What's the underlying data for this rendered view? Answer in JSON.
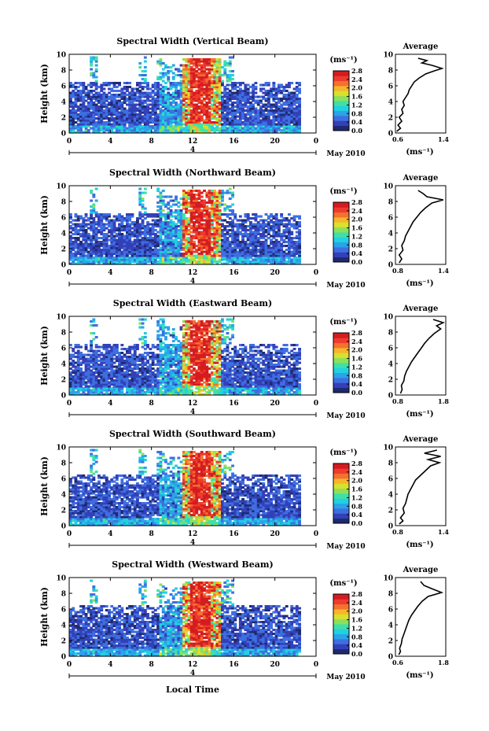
{
  "figure": {
    "x_axis_label": "Local Time",
    "date_label": "May 2010",
    "day_label": "4",
    "height_label": "Height (km)",
    "unit_label": "(ms⁻¹)",
    "avg_unit_label": "(ms⁻¹)",
    "avg_title": "Average"
  },
  "chart_data": [
    {
      "type": "heatmap",
      "title": "Spectral Width (Vertical Beam)",
      "xlabel": "Local Time",
      "ylabel": "Height (km)",
      "xlim": [
        0,
        24
      ],
      "ylim": [
        0,
        10
      ],
      "x_ticks": [
        "0",
        "4",
        "8",
        "12",
        "16",
        "20",
        "0"
      ],
      "y_ticks": [
        "0",
        "2",
        "4",
        "6",
        "8",
        "10"
      ],
      "colorbar": {
        "range": [
          0,
          2.8
        ],
        "ticks": [
          "0.0",
          "0.4",
          "0.8",
          "1.2",
          "1.6",
          "2.0",
          "2.4",
          "2.8"
        ],
        "unit": "(ms⁻¹)"
      },
      "average": {
        "xlim": [
          0.6,
          1.4
        ],
        "x_ticks": [
          "0.6",
          "1.4"
        ],
        "profile": [
          [
            0.62,
            0.2
          ],
          [
            0.68,
            0.6
          ],
          [
            0.64,
            1.0
          ],
          [
            0.7,
            1.5
          ],
          [
            0.66,
            2.0
          ],
          [
            0.72,
            2.5
          ],
          [
            0.7,
            3.0
          ],
          [
            0.74,
            3.5
          ],
          [
            0.72,
            4.0
          ],
          [
            0.76,
            4.5
          ],
          [
            0.8,
            5.0
          ],
          [
            0.82,
            5.5
          ],
          [
            0.86,
            6.0
          ],
          [
            0.9,
            6.5
          ],
          [
            0.98,
            7.0
          ],
          [
            1.08,
            7.5
          ],
          [
            1.22,
            7.9
          ],
          [
            1.34,
            8.2
          ],
          [
            1.18,
            8.6
          ],
          [
            1.02,
            8.9
          ],
          [
            1.1,
            9.2
          ],
          [
            0.96,
            9.5
          ]
        ]
      }
    },
    {
      "type": "heatmap",
      "title": "Spectral Width (Northward Beam)",
      "xlabel": "Local Time",
      "ylabel": "Height (km)",
      "xlim": [
        0,
        24
      ],
      "ylim": [
        0,
        10
      ],
      "x_ticks": [
        "0",
        "4",
        "8",
        "12",
        "16",
        "20",
        "0"
      ],
      "y_ticks": [
        "0",
        "2",
        "4",
        "6",
        "8",
        "10"
      ],
      "colorbar": {
        "range": [
          0,
          2.8
        ],
        "ticks": [
          "0.0",
          "0.4",
          "0.8",
          "1.2",
          "1.6",
          "2.0",
          "2.4",
          "2.8"
        ],
        "unit": "(ms⁻¹)"
      },
      "average": {
        "xlim": [
          0.6,
          1.4
        ],
        "x_ticks": [
          "0.8",
          "1.4"
        ],
        "profile": [
          [
            0.66,
            0.2
          ],
          [
            0.7,
            0.7
          ],
          [
            0.66,
            1.2
          ],
          [
            0.72,
            1.8
          ],
          [
            0.7,
            2.4
          ],
          [
            0.74,
            3.0
          ],
          [
            0.76,
            3.6
          ],
          [
            0.8,
            4.2
          ],
          [
            0.84,
            4.8
          ],
          [
            0.88,
            5.4
          ],
          [
            0.94,
            6.0
          ],
          [
            1.0,
            6.6
          ],
          [
            1.08,
            7.2
          ],
          [
            1.18,
            7.8
          ],
          [
            1.36,
            8.2
          ],
          [
            1.1,
            8.6
          ],
          [
            1.04,
            9.0
          ],
          [
            0.96,
            9.4
          ]
        ]
      }
    },
    {
      "type": "heatmap",
      "title": "Spectral Width (Eastward Beam)",
      "xlabel": "Local Time",
      "ylabel": "Height (km)",
      "xlim": [
        0,
        24
      ],
      "ylim": [
        0,
        10
      ],
      "x_ticks": [
        "0",
        "4",
        "8",
        "12",
        "16",
        "20",
        "0"
      ],
      "y_ticks": [
        "0",
        "2",
        "4",
        "6",
        "8",
        "10"
      ],
      "colorbar": {
        "range": [
          0,
          2.8
        ],
        "ticks": [
          "0.0",
          "0.4",
          "0.8",
          "1.2",
          "1.6",
          "2.0",
          "2.4",
          "2.8"
        ],
        "unit": "(ms⁻¹)"
      },
      "average": {
        "xlim": [
          0.6,
          1.8
        ],
        "x_ticks": [
          "0.8",
          "1.8"
        ],
        "profile": [
          [
            0.72,
            0.2
          ],
          [
            0.76,
            0.7
          ],
          [
            0.74,
            1.2
          ],
          [
            0.8,
            1.8
          ],
          [
            0.82,
            2.4
          ],
          [
            0.86,
            3.0
          ],
          [
            0.92,
            3.6
          ],
          [
            0.98,
            4.2
          ],
          [
            1.06,
            4.8
          ],
          [
            1.14,
            5.4
          ],
          [
            1.22,
            6.0
          ],
          [
            1.3,
            6.6
          ],
          [
            1.4,
            7.2
          ],
          [
            1.52,
            7.8
          ],
          [
            1.68,
            8.4
          ],
          [
            1.58,
            8.8
          ],
          [
            1.74,
            9.2
          ],
          [
            1.5,
            9.6
          ]
        ]
      }
    },
    {
      "type": "heatmap",
      "title": "Spectral Width (Southward Beam)",
      "xlabel": "Local Time",
      "ylabel": "Height (km)",
      "xlim": [
        0,
        24
      ],
      "ylim": [
        0,
        10
      ],
      "x_ticks": [
        "0",
        "4",
        "8",
        "12",
        "16",
        "20",
        "0"
      ],
      "y_ticks": [
        "0",
        "2",
        "4",
        "6",
        "8",
        "10"
      ],
      "colorbar": {
        "range": [
          0,
          2.8
        ],
        "ticks": [
          "0.0",
          "0.4",
          "0.8",
          "1.2",
          "1.6",
          "2.0",
          "2.4",
          "2.8"
        ],
        "unit": "(ms⁻¹)"
      },
      "average": {
        "xlim": [
          0.6,
          1.4
        ],
        "x_ticks": [
          "0.8",
          "1.4"
        ],
        "profile": [
          [
            0.66,
            0.2
          ],
          [
            0.72,
            0.6
          ],
          [
            0.68,
            1.0
          ],
          [
            0.74,
            1.6
          ],
          [
            0.72,
            2.2
          ],
          [
            0.76,
            2.8
          ],
          [
            0.78,
            3.4
          ],
          [
            0.8,
            4.0
          ],
          [
            0.84,
            4.6
          ],
          [
            0.88,
            5.2
          ],
          [
            0.92,
            5.8
          ],
          [
            1.0,
            6.4
          ],
          [
            1.08,
            7.0
          ],
          [
            1.16,
            7.6
          ],
          [
            1.3,
            8.0
          ],
          [
            1.12,
            8.4
          ],
          [
            1.32,
            8.8
          ],
          [
            1.06,
            9.2
          ],
          [
            1.26,
            9.6
          ]
        ]
      }
    },
    {
      "type": "heatmap",
      "title": "Spectral Width (Westward Beam)",
      "xlabel": "Local Time",
      "ylabel": "Height (km)",
      "xlim": [
        0,
        24
      ],
      "ylim": [
        0,
        10
      ],
      "x_ticks": [
        "0",
        "4",
        "8",
        "12",
        "16",
        "20",
        "0"
      ],
      "y_ticks": [
        "0",
        "2",
        "4",
        "6",
        "8",
        "10"
      ],
      "colorbar": {
        "range": [
          0,
          2.8
        ],
        "ticks": [
          "0.0",
          "0.4",
          "0.8",
          "1.2",
          "1.6",
          "2.0",
          "2.4",
          "2.8"
        ],
        "unit": "(ms⁻¹)"
      },
      "average": {
        "xlim": [
          0.6,
          1.8
        ],
        "x_ticks": [
          "0.6",
          "1.8"
        ],
        "profile": [
          [
            0.68,
            0.2
          ],
          [
            0.72,
            0.6
          ],
          [
            0.7,
            1.0
          ],
          [
            0.74,
            1.6
          ],
          [
            0.76,
            2.2
          ],
          [
            0.8,
            2.8
          ],
          [
            0.84,
            3.4
          ],
          [
            0.88,
            4.0
          ],
          [
            0.92,
            4.6
          ],
          [
            0.98,
            5.2
          ],
          [
            1.06,
            5.8
          ],
          [
            1.14,
            6.4
          ],
          [
            1.24,
            7.0
          ],
          [
            1.38,
            7.6
          ],
          [
            1.7,
            8.1
          ],
          [
            1.46,
            8.6
          ],
          [
            1.28,
            9.0
          ],
          [
            1.2,
            9.5
          ]
        ]
      }
    }
  ]
}
